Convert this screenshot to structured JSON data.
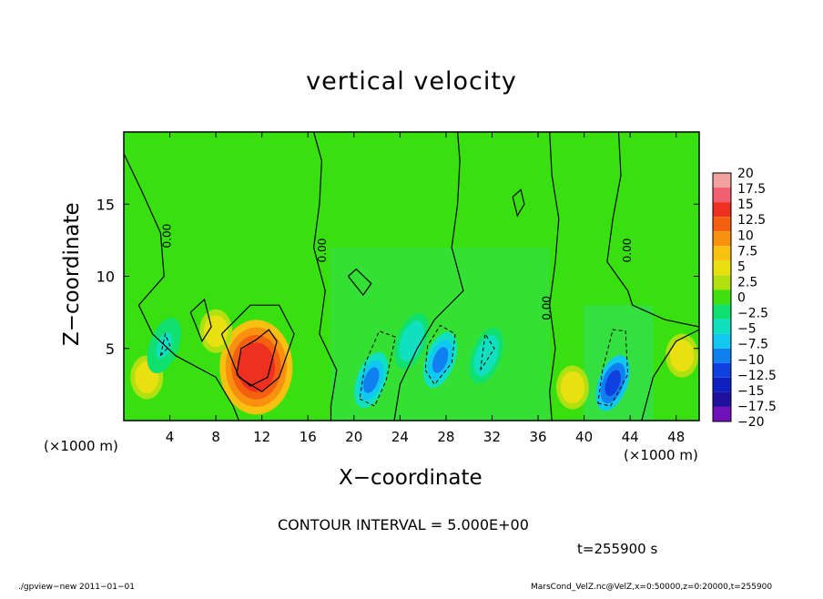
{
  "chart_data": {
    "type": "heatmap",
    "title": "vertical velocity",
    "xlabel": "X−coordinate",
    "ylabel": "Z−coordinate",
    "x_unit_left": "(×1000 m)",
    "x_unit_right": "(×1000 m)",
    "xlim": [
      0,
      50
    ],
    "ylim": [
      0,
      20
    ],
    "x_ticks": [
      4,
      8,
      12,
      16,
      20,
      24,
      28,
      32,
      36,
      40,
      44,
      48
    ],
    "x_tick_labels": [
      "4",
      "8",
      "12",
      "16",
      "20",
      "24",
      "28",
      "32",
      "36",
      "40",
      "44",
      "48"
    ],
    "y_ticks": [
      5,
      10,
      15
    ],
    "y_tick_labels": [
      "5",
      "10",
      "15"
    ],
    "colorbar": {
      "levels": [
        20,
        17.5,
        15,
        12.5,
        10,
        7.5,
        5,
        2.5,
        0,
        -2.5,
        -5,
        -7.5,
        -10,
        -12.5,
        -15,
        -17.5,
        -20
      ],
      "labels": [
        "20",
        "17.5",
        "15",
        "12.5",
        "10",
        "7.5",
        "5",
        "2.5",
        "0",
        "−2.5",
        "−5",
        "−7.5",
        "−10",
        "−12.5",
        "−15",
        "−17.5",
        "−20"
      ],
      "colors": [
        "#f2a0a0",
        "#f06070",
        "#ee3020",
        "#f46010",
        "#f89010",
        "#f8c010",
        "#e8e010",
        "#b0e010",
        "#40e010",
        "#10e070",
        "#10e0c0",
        "#10c8f0",
        "#1080f0",
        "#1040e0",
        "#1020c0",
        "#2010a0",
        "#7010b8"
      ]
    },
    "contour_labels": [
      "0.00",
      "0.00",
      "0.00",
      "0.00"
    ],
    "features": [
      {
        "kind": "updraft-max",
        "x": 11.5,
        "z": 3.7,
        "value": 16
      },
      {
        "kind": "updraft",
        "x": 8.0,
        "z": 6.2,
        "value": 6
      },
      {
        "kind": "updraft",
        "x": 2.0,
        "z": 3.0,
        "value": 5
      },
      {
        "kind": "updraft",
        "x": 39.0,
        "z": 2.3,
        "value": 6
      },
      {
        "kind": "updraft",
        "x": 48.5,
        "z": 4.5,
        "value": 5
      },
      {
        "kind": "downdraft",
        "x": 21.5,
        "z": 2.8,
        "value": -10
      },
      {
        "kind": "downdraft",
        "x": 27.5,
        "z": 4.2,
        "value": -10
      },
      {
        "kind": "downdraft",
        "x": 42.5,
        "z": 2.6,
        "value": -12
      },
      {
        "kind": "downdraft",
        "x": 25.0,
        "z": 5.5,
        "value": -6
      },
      {
        "kind": "downdraft",
        "x": 31.5,
        "z": 4.5,
        "value": -5
      },
      {
        "kind": "downdraft",
        "x": 3.5,
        "z": 5.2,
        "value": -4
      }
    ]
  },
  "labels": {
    "contour_interval": "CONTOUR INTERVAL = 5.000E+00",
    "time": "t=255900 s",
    "footer_left": "./gpview−new   2011−01−01",
    "footer_right": "MarsCond_VelZ.nc@VelZ,x=0:50000,z=0:20000,t=255900"
  }
}
